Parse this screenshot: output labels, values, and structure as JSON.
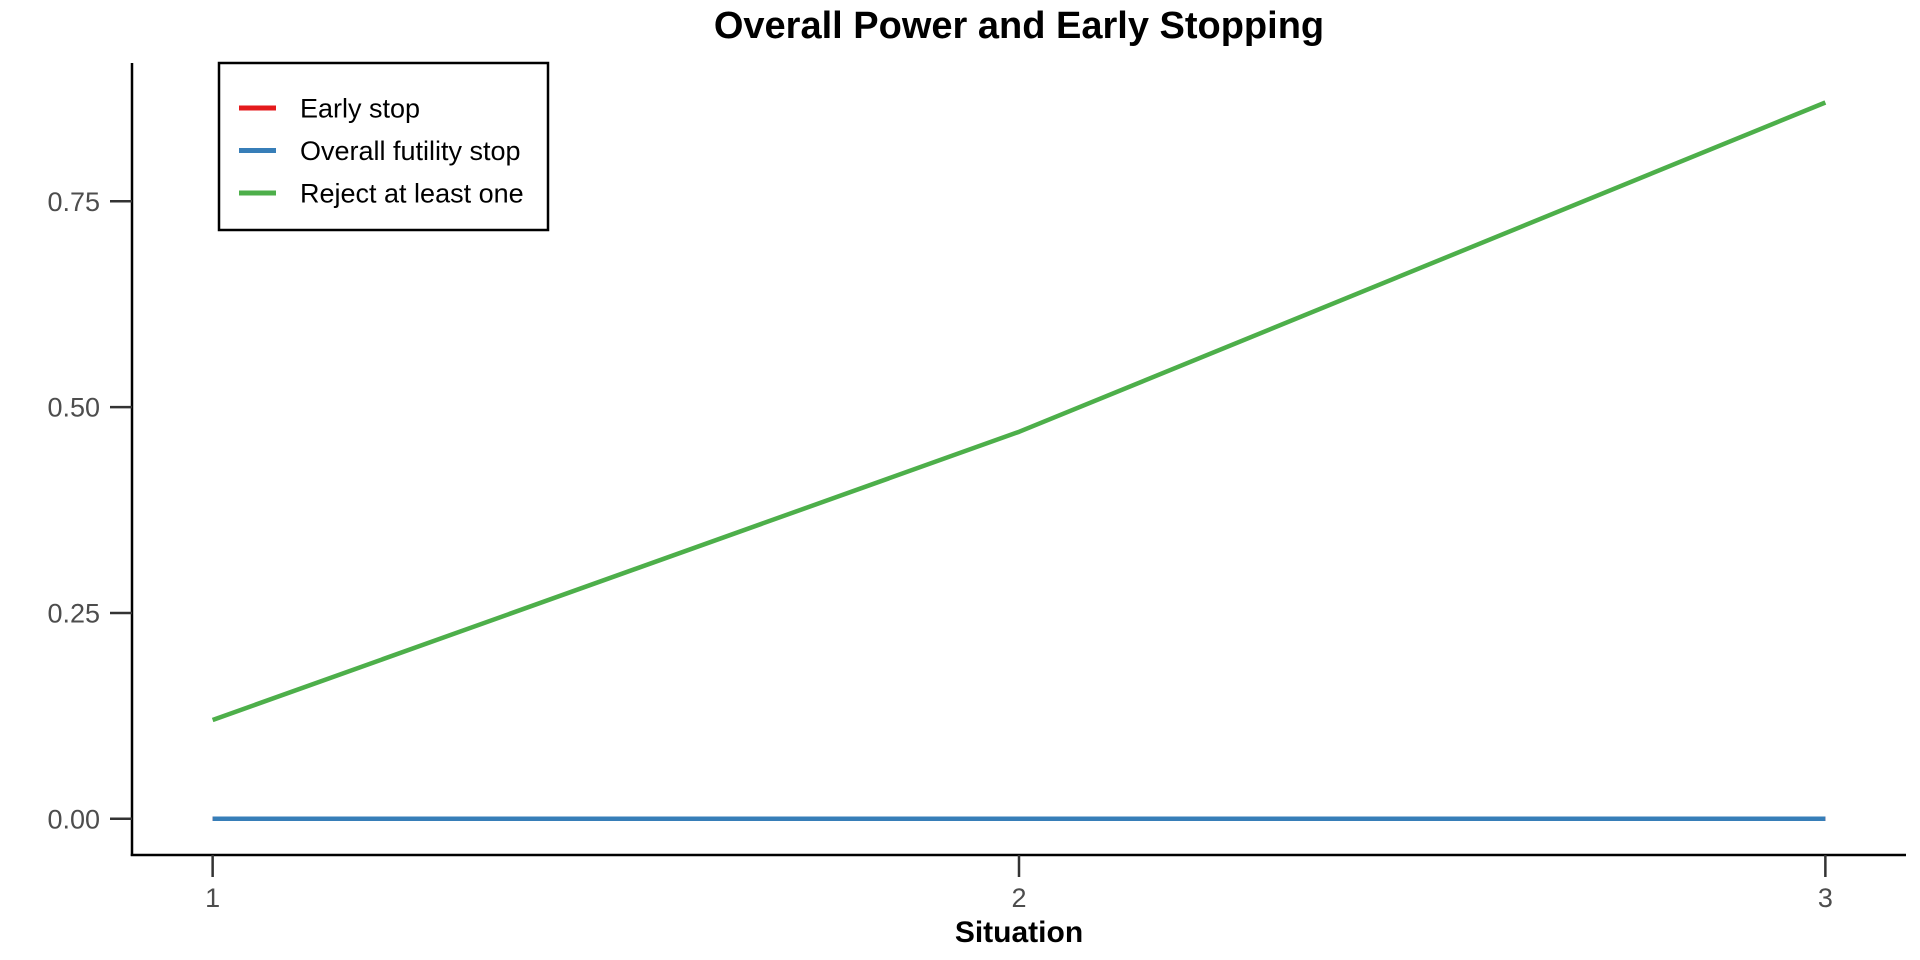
{
  "chart_data": {
    "type": "line",
    "title": "Overall Power and Early Stopping",
    "xlabel": "Situation",
    "ylabel": "",
    "x": [
      1,
      2,
      3
    ],
    "series": [
      {
        "name": "Early stop",
        "color": "#E41A1C",
        "values": [
          0.0,
          0.0,
          0.0
        ]
      },
      {
        "name": "Overall futility stop",
        "color": "#377EB8",
        "values": [
          0.0,
          0.0,
          0.0
        ]
      },
      {
        "name": "Reject at least one",
        "color": "#4DAF4A",
        "values": [
          0.12,
          0.47,
          0.87
        ]
      }
    ],
    "x_ticks": [
      1,
      2,
      3
    ],
    "x_tick_labels": [
      "1",
      "2",
      "3"
    ],
    "y_ticks": [
      0.0,
      0.25,
      0.5,
      0.75
    ],
    "y_tick_labels": [
      "0.00",
      "0.25",
      "0.50",
      "0.75"
    ],
    "xlim": [
      0.9,
      3.1
    ],
    "ylim": [
      -0.044,
      0.918
    ],
    "grid": false,
    "legend_position": "top-left",
    "axis_color": "#000000",
    "tick_color": "#333333",
    "tick_label_color": "#4d4d4d"
  }
}
